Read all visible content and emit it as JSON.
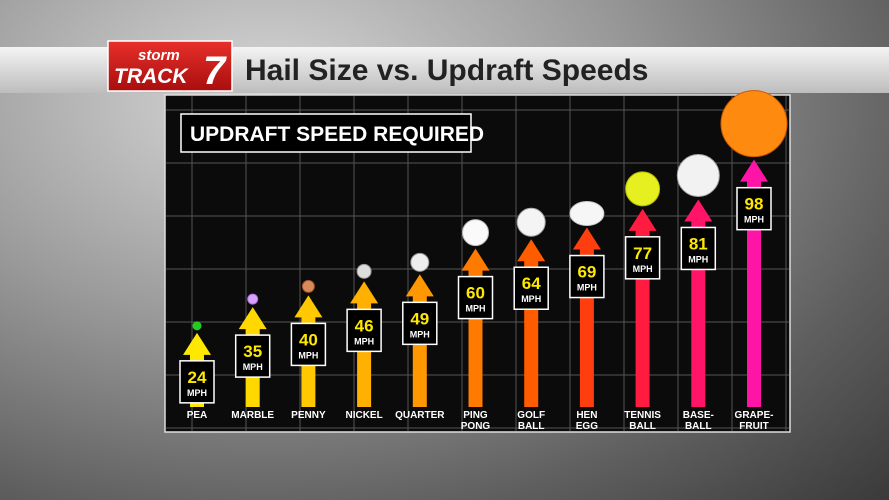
{
  "header": {
    "logo_top": "storm",
    "logo_bottom": "TRACK",
    "logo_number": "7",
    "title": "Hail Size vs. Updraft Speeds"
  },
  "chart_data": {
    "type": "arrow-bar",
    "subtitle": "UPDRAFT SPEED REQUIRED",
    "categories": [
      "PEA",
      "MARBLE",
      "PENNY",
      "NICKEL",
      "QUARTER",
      "PING\nPONG",
      "GOLF\nBALL",
      "HEN\nEGG",
      "TENNIS\nBALL",
      "BASE-\nBALL",
      "GRAPE-\nFRUIT"
    ],
    "values": [
      24,
      35,
      40,
      46,
      49,
      60,
      64,
      69,
      77,
      81,
      98
    ],
    "unit": "MPH",
    "colors": [
      "#ffe800",
      "#ffd800",
      "#ffc800",
      "#ffb000",
      "#ff9800",
      "#ff7a00",
      "#ff5c00",
      "#ff3e10",
      "#ff1c40",
      "#ff1468",
      "#ff14a8"
    ],
    "grid": true
  }
}
